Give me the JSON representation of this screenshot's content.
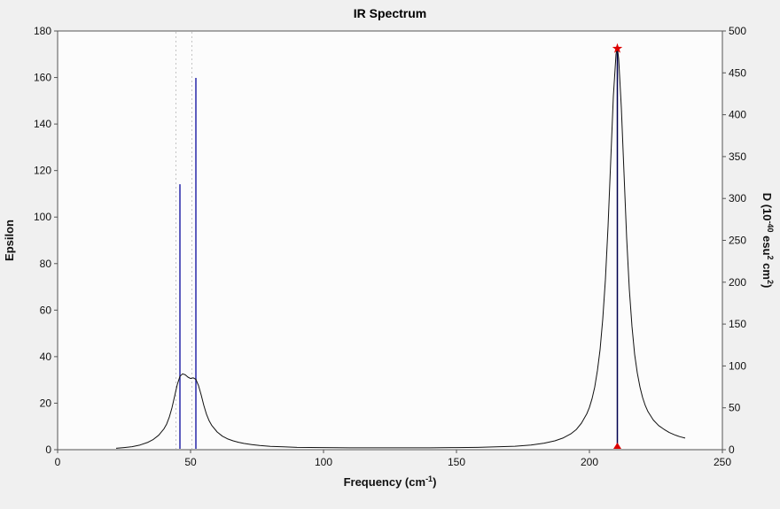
{
  "chart_data": {
    "type": "line",
    "title": "IR Spectrum",
    "xlabel": "Frequency (cm-1)",
    "xlabel_segments": [
      {
        "text": "Frequency (cm"
      },
      {
        "text": "-1",
        "sup": true
      },
      {
        "text": ")"
      }
    ],
    "ylabel_left": "Epsilon",
    "ylabel_right": "D (10-40 esu2 cm2)",
    "ylabel_right_segments": [
      {
        "text": "D (10"
      },
      {
        "text": "-40",
        "sup": true
      },
      {
        "text": " esu"
      },
      {
        "text": "2",
        "sup": true
      },
      {
        "text": " cm"
      },
      {
        "text": "2",
        "sup": true
      },
      {
        "text": ")"
      }
    ],
    "x_axis": {
      "min": 0,
      "max": 250,
      "ticks": [
        0,
        50,
        100,
        150,
        200,
        250
      ]
    },
    "y_axis_left": {
      "min": 0,
      "max": 180,
      "ticks": [
        0,
        20,
        40,
        60,
        80,
        100,
        120,
        140,
        160,
        180
      ]
    },
    "y_axis_right": {
      "min": 0,
      "max": 500,
      "ticks": [
        0,
        50,
        100,
        150,
        200,
        250,
        300,
        350,
        400,
        450,
        500
      ]
    },
    "gridlines_x": [
      44.5,
      50.5
    ],
    "curve": {
      "axis": "left",
      "color": "#111111",
      "points": [
        [
          22,
          0.6
        ],
        [
          25,
          0.9
        ],
        [
          28,
          1.3
        ],
        [
          31,
          2.0
        ],
        [
          34,
          3.2
        ],
        [
          36,
          4.4
        ],
        [
          38,
          6.2
        ],
        [
          40,
          9.0
        ],
        [
          41,
          11.0
        ],
        [
          42,
          14.0
        ],
        [
          43,
          18.0
        ],
        [
          44,
          23.0
        ],
        [
          45,
          28.0
        ],
        [
          46,
          31.5
        ],
        [
          47,
          32.6
        ],
        [
          48,
          32.2
        ],
        [
          49,
          31.2
        ],
        [
          50,
          30.6
        ],
        [
          51,
          30.9
        ],
        [
          52,
          30.2
        ],
        [
          53,
          27.5
        ],
        [
          54,
          23.5
        ],
        [
          55,
          19.0
        ],
        [
          56,
          15.2
        ],
        [
          57,
          12.4
        ],
        [
          58,
          10.4
        ],
        [
          60,
          7.6
        ],
        [
          62,
          5.8
        ],
        [
          64,
          4.6
        ],
        [
          66,
          3.8
        ],
        [
          68,
          3.2
        ],
        [
          70,
          2.7
        ],
        [
          73,
          2.2
        ],
        [
          76,
          1.8
        ],
        [
          80,
          1.4
        ],
        [
          85,
          1.2
        ],
        [
          90,
          1.0
        ],
        [
          100,
          0.9
        ],
        [
          110,
          0.8
        ],
        [
          120,
          0.8
        ],
        [
          130,
          0.8
        ],
        [
          140,
          0.8
        ],
        [
          150,
          0.9
        ],
        [
          158,
          1.0
        ],
        [
          165,
          1.2
        ],
        [
          172,
          1.5
        ],
        [
          178,
          2.0
        ],
        [
          183,
          2.8
        ],
        [
          187,
          3.8
        ],
        [
          190,
          5.0
        ],
        [
          193,
          6.8
        ],
        [
          195,
          8.6
        ],
        [
          197,
          11.4
        ],
        [
          199,
          15.4
        ],
        [
          200,
          18.2
        ],
        [
          201,
          22.0
        ],
        [
          202,
          27.0
        ],
        [
          203,
          34.0
        ],
        [
          204,
          43.0
        ],
        [
          205,
          56.0
        ],
        [
          206,
          73.0
        ],
        [
          207,
          96.0
        ],
        [
          208,
          124.0
        ],
        [
          209,
          152.0
        ],
        [
          210,
          170.0
        ],
        [
          210.5,
          173.0
        ],
        [
          211,
          168.0
        ],
        [
          212,
          147.0
        ],
        [
          213,
          119.0
        ],
        [
          214,
          91.0
        ],
        [
          215,
          69.0
        ],
        [
          216,
          53.0
        ],
        [
          217,
          41.0
        ],
        [
          218,
          33.0
        ],
        [
          219,
          27.0
        ],
        [
          220,
          22.4
        ],
        [
          221,
          19.0
        ],
        [
          222,
          16.4
        ],
        [
          224,
          12.8
        ],
        [
          226,
          10.4
        ],
        [
          228,
          8.8
        ],
        [
          230,
          7.4
        ],
        [
          232,
          6.4
        ],
        [
          234,
          5.6
        ],
        [
          236,
          5.0
        ]
      ]
    },
    "sticks": {
      "axis": "right",
      "default_color": "#2828aa",
      "items": [
        {
          "frequency": 46,
          "value": 317
        },
        {
          "frequency": 52,
          "value": 444
        },
        {
          "frequency": 210.5,
          "value": 478,
          "color": "#00004f",
          "selected": true
        }
      ]
    },
    "selected_peak_marker": {
      "frequency": 210.5,
      "top_value": 478,
      "color": "#dd0000",
      "top_symbol": "star",
      "bottom_symbol": "triangle"
    },
    "colors": {
      "background": "#f0f0f0",
      "plot_background": "#fcfcfc",
      "frame": "#555555",
      "grid": "#c4c4c4",
      "tick_label": "#111111"
    }
  }
}
